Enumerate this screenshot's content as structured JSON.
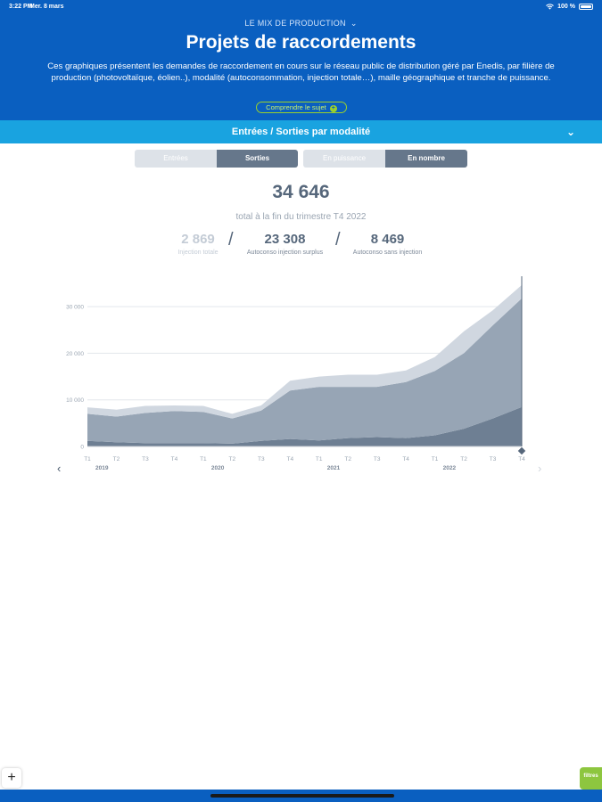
{
  "status": {
    "time": "3:22 PM",
    "date": "Mer. 8 mars",
    "battery": "100 %"
  },
  "header": {
    "section": "LE MIX DE PRODUCTION",
    "title": "Projets de raccordements",
    "description": "Ces graphiques présentent les demandes de raccordement en cours sur le réseau public de distribution géré par Enedis, par filière de production (photovoltaïque, éolien..), modalité (autoconsommation, injection totale…), maille géographique et tranche de puissance.",
    "learn_more": "Comprendre le sujet"
  },
  "accordion": {
    "label": "Entrées / Sorties par modalité"
  },
  "toggles": {
    "group1": [
      {
        "label": "Entrées",
        "active": false
      },
      {
        "label": "Sorties",
        "active": true
      }
    ],
    "group2": [
      {
        "label": "En puissance",
        "active": false
      },
      {
        "label": "En nombre",
        "active": true
      }
    ]
  },
  "summary": {
    "total": "34 646",
    "caption": "total à la fin du trimestre T4 2022",
    "stats": [
      {
        "value": "2 869",
        "label": "Injection totale"
      },
      {
        "value": "23 308",
        "label": "Autoconso injection surplus"
      },
      {
        "value": "8 469",
        "label": "Autoconso sans injection"
      }
    ]
  },
  "chart_data": {
    "type": "area",
    "stacked": true,
    "x": [
      "T1",
      "T2",
      "T3",
      "T4",
      "T1",
      "T2",
      "T3",
      "T4",
      "T1",
      "T2",
      "T3",
      "T4",
      "T1",
      "T2",
      "T3",
      "T4"
    ],
    "x_groups": [
      {
        "label": "2019",
        "start": 0
      },
      {
        "label": "2020",
        "start": 4
      },
      {
        "label": "2021",
        "start": 8
      },
      {
        "label": "2022",
        "start": 12
      }
    ],
    "ylim": [
      0,
      35000
    ],
    "yticks": [
      0,
      10000,
      20000,
      30000
    ],
    "ytick_labels": [
      "0",
      "10 000",
      "20 000",
      "30 000"
    ],
    "grid": true,
    "series": [
      {
        "values": [
          1200,
          900,
          700,
          700,
          700,
          600,
          1200,
          1600,
          1300,
          1800,
          2000,
          1800,
          2400,
          3800,
          6000,
          8469
        ]
      },
      {
        "values": [
          5800,
          5500,
          6500,
          6900,
          6700,
          5400,
          6500,
          10400,
          11500,
          11000,
          10800,
          12000,
          13800,
          16200,
          20000,
          23308
        ]
      },
      {
        "values": [
          1400,
          1500,
          1500,
          1200,
          1300,
          1000,
          1100,
          2100,
          2200,
          2600,
          2600,
          2500,
          3000,
          4700,
          3200,
          2869
        ]
      }
    ],
    "colors": [
      "#6e7f93",
      "#97a5b5",
      "#d0d7e0"
    ]
  },
  "nav": {
    "prev": "‹",
    "next": "›"
  },
  "footer": {
    "plus": "+",
    "filters": "filtres"
  }
}
